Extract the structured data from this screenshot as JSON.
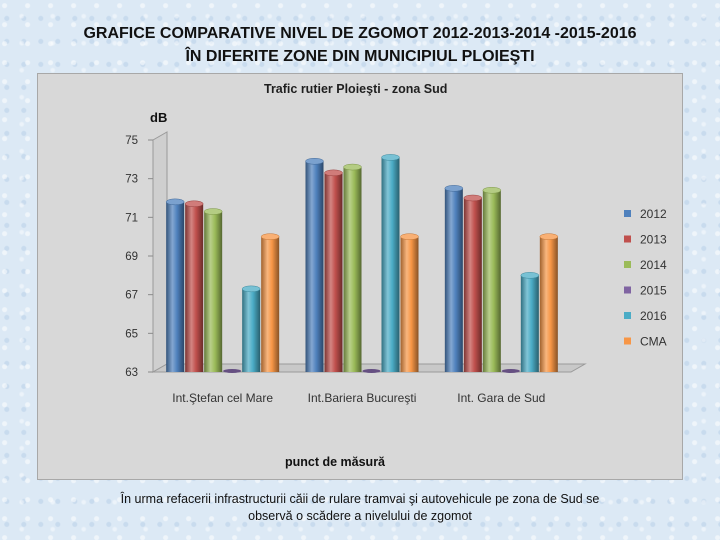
{
  "slide": {
    "title_line1": "GRAFICE COMPARATIVE NIVEL DE ZGOMOT  2012-2013-2014 -2015-2016",
    "title_line2": "ÎN DIFERITE ZONE  DIN MUNICIPIUL  PLOIEŞTI",
    "caption_line1": "În urma refacerii infrastructurii căii de rulare tramvai şi autovehicule pe zona de Sud se",
    "caption_line2": "observă o scădere a nivelului de zgomot"
  },
  "chart_data": {
    "type": "bar",
    "title": "Trafic rutier Ploieşti - zona Sud",
    "ylabel": "dB",
    "xlabel": "punct de măsură",
    "categories": [
      "Int.Ştefan cel Mare",
      "Int.Bariera Bucureşti",
      "Int. Gara de Sud"
    ],
    "ylim": [
      63,
      75
    ],
    "yticks": [
      63,
      65,
      67,
      69,
      71,
      73,
      75
    ],
    "grid": false,
    "legend_position": "right",
    "series": [
      {
        "name": "2012",
        "color": "#4f81bd",
        "values": [
          71.8,
          73.9,
          72.5
        ]
      },
      {
        "name": "2013",
        "color": "#c0504d",
        "values": [
          71.7,
          73.3,
          72.0
        ]
      },
      {
        "name": "2014",
        "color": "#9bbb59",
        "values": [
          71.3,
          73.6,
          72.4
        ]
      },
      {
        "name": "2015",
        "color": "#8064a2",
        "values": [
          63,
          63,
          63
        ]
      },
      {
        "name": "2016",
        "color": "#4bacc6",
        "values": [
          67.3,
          74.1,
          68.0
        ]
      },
      {
        "name": "CMA",
        "color": "#f79646",
        "values": [
          70,
          70,
          70
        ]
      }
    ]
  }
}
